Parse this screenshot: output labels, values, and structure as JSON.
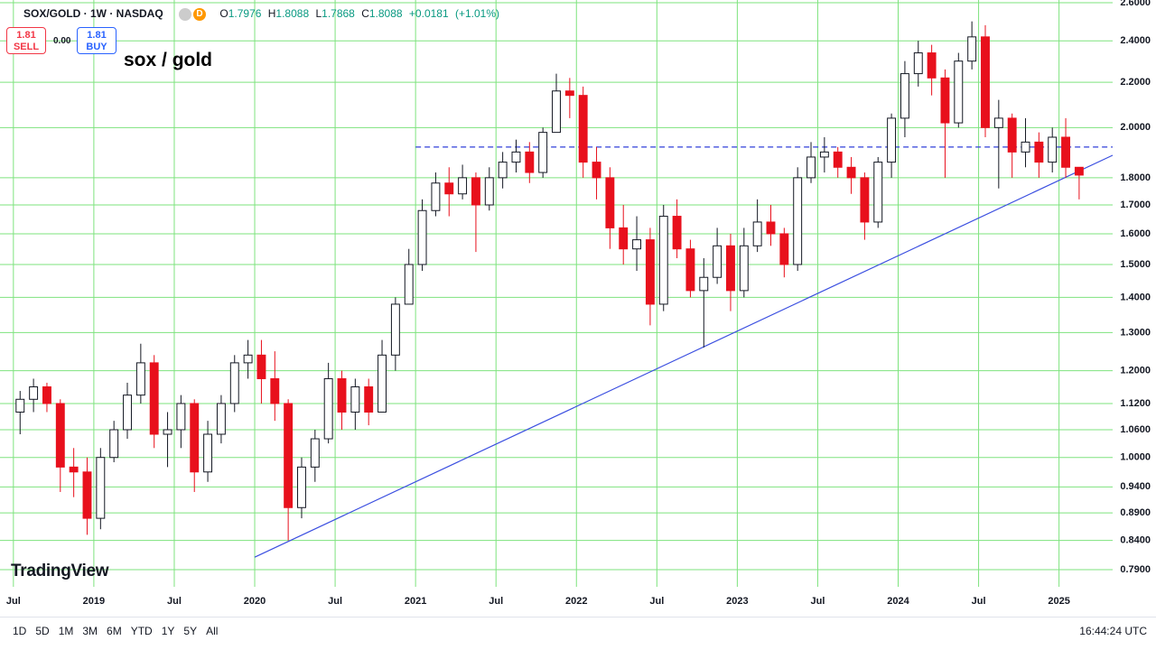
{
  "header": {
    "symbol": "SOX/GOLD · 1W · NASDAQ",
    "badge": "D",
    "open_key": "O",
    "open": "1.7976",
    "high_key": "H",
    "high": "1.8088",
    "low_key": "L",
    "low": "1.7868",
    "close_key": "C",
    "close": "1.8088",
    "change": "+0.0181",
    "change_pct": "(+1.01%)",
    "sell_price": "1.81",
    "sell_label": "SELL",
    "spread": "0.00",
    "buy_price": "1.81",
    "buy_label": "BUY",
    "logo": "TradingView"
  },
  "footer": {
    "ranges": [
      "1D",
      "5D",
      "1M",
      "3M",
      "6M",
      "YTD",
      "1Y",
      "5Y",
      "All"
    ],
    "clock": "16:44:24 UTC"
  },
  "chart_data": {
    "type": "candlestick",
    "title": "sox / gold",
    "log_scale": true,
    "grid": true,
    "grid_color": "#7ee37e",
    "up_color": "#ffffff",
    "up_border": "#131722",
    "down_color": "#e8101c",
    "xlim": [
      "2018-06",
      "2025-05"
    ],
    "xticks": [
      {
        "value": "2018-07",
        "label": "Jul"
      },
      {
        "value": "2019-01",
        "label": "2019"
      },
      {
        "value": "2019-07",
        "label": "Jul"
      },
      {
        "value": "2020-01",
        "label": "2020"
      },
      {
        "value": "2020-07",
        "label": "Jul"
      },
      {
        "value": "2021-01",
        "label": "2021"
      },
      {
        "value": "2021-07",
        "label": "Jul"
      },
      {
        "value": "2022-01",
        "label": "2022"
      },
      {
        "value": "2022-07",
        "label": "Jul"
      },
      {
        "value": "2023-01",
        "label": "2023"
      },
      {
        "value": "2023-07",
        "label": "Jul"
      },
      {
        "value": "2024-01",
        "label": "2024"
      },
      {
        "value": "2024-07",
        "label": "Jul"
      },
      {
        "value": "2025-01",
        "label": "2025"
      }
    ],
    "ylim": [
      0.762,
      2.615
    ],
    "yticks": [
      {
        "value": 2.6,
        "label": "2.6000"
      },
      {
        "value": 2.4,
        "label": "2.4000"
      },
      {
        "value": 2.2,
        "label": "2.2000"
      },
      {
        "value": 2.0,
        "label": "2.0000"
      },
      {
        "value": 1.8,
        "label": "1.8000"
      },
      {
        "value": 1.7,
        "label": "1.7000"
      },
      {
        "value": 1.6,
        "label": "1.6000"
      },
      {
        "value": 1.5,
        "label": "1.5000"
      },
      {
        "value": 1.4,
        "label": "1.4000"
      },
      {
        "value": 1.3,
        "label": "1.3000"
      },
      {
        "value": 1.2,
        "label": "1.2000"
      },
      {
        "value": 1.12,
        "label": "1.1200"
      },
      {
        "value": 1.06,
        "label": "1.0600"
      },
      {
        "value": 1.0,
        "label": "1.0000"
      },
      {
        "value": 0.94,
        "label": "0.9400"
      },
      {
        "value": 0.89,
        "label": "0.8900"
      },
      {
        "value": 0.84,
        "label": "0.8400"
      },
      {
        "value": 0.79,
        "label": "0.7900"
      }
    ],
    "x": [
      "2018-07",
      "2018-08",
      "2018-09",
      "2018-10",
      "2018-11",
      "2018-12",
      "2019-01",
      "2019-02",
      "2019-03",
      "2019-04",
      "2019-05",
      "2019-06",
      "2019-07",
      "2019-08",
      "2019-09",
      "2019-10",
      "2019-11",
      "2019-12",
      "2020-01",
      "2020-02",
      "2020-03",
      "2020-04",
      "2020-05",
      "2020-06",
      "2020-07",
      "2020-08",
      "2020-09",
      "2020-10",
      "2020-11",
      "2020-12",
      "2021-01",
      "2021-02",
      "2021-03",
      "2021-04",
      "2021-05",
      "2021-06",
      "2021-07",
      "2021-08",
      "2021-09",
      "2021-10",
      "2021-11",
      "2021-12",
      "2022-01",
      "2022-02",
      "2022-03",
      "2022-04",
      "2022-05",
      "2022-06",
      "2022-07",
      "2022-08",
      "2022-09",
      "2022-10",
      "2022-11",
      "2022-12",
      "2023-01",
      "2023-02",
      "2023-03",
      "2023-04",
      "2023-05",
      "2023-06",
      "2023-07",
      "2023-08",
      "2023-09",
      "2023-10",
      "2023-11",
      "2023-12",
      "2024-01",
      "2024-02",
      "2024-03",
      "2024-04",
      "2024-05",
      "2024-06",
      "2024-07",
      "2024-08",
      "2024-09",
      "2024-10",
      "2024-11",
      "2024-12",
      "2025-01",
      "2025-02"
    ],
    "open": [
      1.1,
      1.13,
      1.16,
      1.12,
      0.98,
      0.97,
      0.88,
      1.0,
      1.06,
      1.14,
      1.22,
      1.05,
      1.06,
      1.12,
      0.97,
      1.05,
      1.12,
      1.22,
      1.24,
      1.18,
      1.12,
      0.9,
      0.98,
      1.04,
      1.18,
      1.1,
      1.16,
      1.1,
      1.24,
      1.38,
      1.5,
      1.68,
      1.78,
      1.74,
      1.8,
      1.7,
      1.8,
      1.86,
      1.9,
      1.82,
      1.98,
      2.16,
      2.14,
      1.86,
      1.8,
      1.62,
      1.55,
      1.58,
      1.38,
      1.66,
      1.55,
      1.42,
      1.46,
      1.56,
      1.42,
      1.56,
      1.64,
      1.6,
      1.5,
      1.8,
      1.88,
      1.9,
      1.84,
      1.8,
      1.64,
      1.86,
      2.04,
      2.24,
      2.34,
      2.22,
      2.02,
      2.3,
      2.42,
      2.0,
      2.04,
      1.9,
      1.94,
      1.86,
      1.96,
      1.84
    ],
    "high": [
      1.15,
      1.18,
      1.17,
      1.13,
      1.02,
      1.0,
      1.02,
      1.08,
      1.17,
      1.27,
      1.24,
      1.1,
      1.14,
      1.13,
      1.08,
      1.14,
      1.24,
      1.28,
      1.28,
      1.25,
      1.13,
      1.0,
      1.06,
      1.22,
      1.2,
      1.18,
      1.18,
      1.28,
      1.4,
      1.55,
      1.72,
      1.82,
      1.84,
      1.85,
      1.82,
      1.84,
      1.9,
      1.95,
      1.94,
      2.0,
      2.24,
      2.22,
      2.18,
      1.92,
      1.84,
      1.7,
      1.66,
      1.62,
      1.7,
      1.72,
      1.58,
      1.52,
      1.62,
      1.6,
      1.62,
      1.72,
      1.7,
      1.62,
      1.84,
      1.94,
      1.96,
      1.92,
      1.88,
      1.82,
      1.88,
      2.06,
      2.3,
      2.4,
      2.38,
      2.26,
      2.34,
      2.5,
      2.48,
      2.12,
      2.06,
      2.04,
      1.98,
      2.0,
      2.04,
      1.84
    ],
    "low": [
      1.05,
      1.1,
      1.1,
      0.93,
      0.92,
      0.85,
      0.86,
      0.99,
      1.04,
      1.12,
      1.02,
      0.98,
      1.02,
      0.93,
      0.95,
      1.03,
      1.1,
      1.18,
      1.12,
      1.08,
      0.84,
      0.88,
      0.95,
      1.03,
      1.06,
      1.06,
      1.07,
      1.1,
      1.2,
      1.38,
      1.48,
      1.66,
      1.66,
      1.72,
      1.54,
      1.68,
      1.76,
      1.82,
      1.78,
      1.8,
      1.98,
      2.04,
      1.8,
      1.72,
      1.55,
      1.5,
      1.48,
      1.32,
      1.36,
      1.52,
      1.4,
      1.26,
      1.44,
      1.36,
      1.4,
      1.54,
      1.56,
      1.46,
      1.48,
      1.78,
      1.82,
      1.8,
      1.74,
      1.58,
      1.62,
      1.8,
      1.96,
      2.18,
      2.14,
      1.8,
      2.0,
      2.26,
      1.96,
      1.76,
      1.8,
      1.84,
      1.8,
      1.82,
      1.8,
      1.72
    ],
    "close": [
      1.13,
      1.16,
      1.12,
      0.98,
      0.97,
      0.88,
      1.0,
      1.06,
      1.14,
      1.22,
      1.05,
      1.06,
      1.12,
      0.97,
      1.05,
      1.12,
      1.22,
      1.24,
      1.18,
      1.12,
      0.9,
      0.98,
      1.04,
      1.18,
      1.1,
      1.16,
      1.1,
      1.24,
      1.38,
      1.5,
      1.68,
      1.78,
      1.74,
      1.8,
      1.7,
      1.8,
      1.86,
      1.9,
      1.82,
      1.98,
      2.16,
      2.14,
      1.86,
      1.8,
      1.62,
      1.55,
      1.58,
      1.38,
      1.66,
      1.55,
      1.42,
      1.46,
      1.56,
      1.42,
      1.56,
      1.64,
      1.6,
      1.5,
      1.8,
      1.88,
      1.9,
      1.84,
      1.8,
      1.64,
      1.86,
      2.04,
      2.24,
      2.34,
      2.22,
      2.02,
      2.3,
      2.42,
      2.0,
      2.04,
      1.9,
      1.94,
      1.86,
      1.96,
      1.84,
      1.81
    ],
    "drawings": [
      {
        "kind": "hline",
        "color": "#2f3fd8",
        "dashed": true,
        "x": [
          "2021-01",
          "2025-05"
        ],
        "y": [
          1.92,
          1.92
        ]
      },
      {
        "kind": "trendline",
        "color": "#3b4fe0",
        "dashed": false,
        "x": [
          "2020-01",
          "2025-05"
        ],
        "y": [
          0.811,
          1.887
        ]
      }
    ]
  }
}
